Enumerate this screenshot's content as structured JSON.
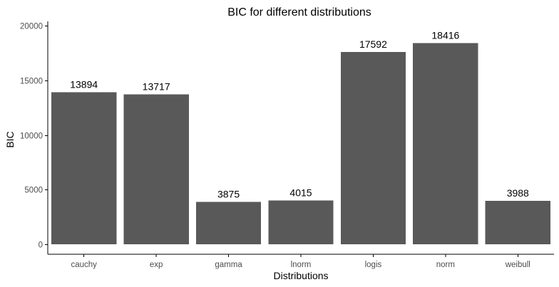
{
  "chart_data": {
    "type": "bar",
    "title": "BIC for different distributions",
    "xlabel": "Distributions",
    "ylabel": "BIC",
    "categories": [
      "cauchy",
      "exp",
      "gamma",
      "lnorm",
      "logis",
      "norm",
      "weibull"
    ],
    "values": [
      13894,
      13717,
      3875,
      4015,
      17592,
      18416,
      3988
    ],
    "data_labels": [
      "13894",
      "13717",
      "3875",
      "4015",
      "17592",
      "18416",
      "3988"
    ],
    "yticks": [
      0,
      5000,
      10000,
      15000,
      20000
    ],
    "ylim": [
      0,
      20000
    ],
    "bar_color": "#595959",
    "grid": false,
    "legend": "none"
  }
}
